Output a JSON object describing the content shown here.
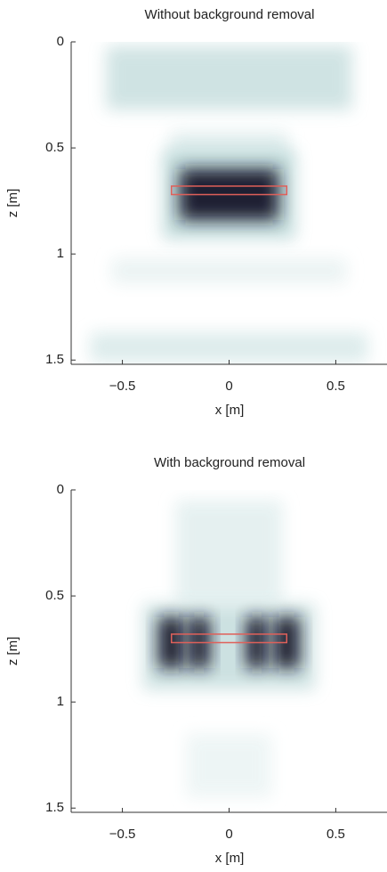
{
  "chart_data": [
    {
      "type": "image",
      "title": "Without background removal",
      "xlabel": "x [m]",
      "ylabel": "z [m]",
      "xlim": [
        -0.74,
        0.74
      ],
      "ylim": [
        0,
        1.52
      ],
      "xticks": [
        {
          "value": -0.5,
          "label": "−0.5"
        },
        0,
        0.5
      ],
      "yticks": [
        0,
        0.5,
        1,
        1.5
      ],
      "colormap": [
        "#ffffff",
        "#a6cccc",
        "#14142c"
      ],
      "blobs": [
        {
          "x": 0,
          "z": 0.17,
          "width": 1.15,
          "height": 0.3,
          "intensity": 0.28
        },
        {
          "x": 0,
          "z": 0.5,
          "width": 0.55,
          "height": 0.15,
          "intensity": 0.18
        },
        {
          "x": 0,
          "z": 0.72,
          "width": 0.62,
          "height": 0.42,
          "intensity": 0.35
        },
        {
          "x": 0,
          "z": 0.72,
          "width": 0.46,
          "height": 0.24,
          "intensity": 1
        },
        {
          "x": 0,
          "z": 1.08,
          "width": 1.1,
          "height": 0.12,
          "intensity": 0.12
        },
        {
          "x": 0,
          "z": 1.44,
          "width": 1.3,
          "height": 0.14,
          "intensity": 0.2
        }
      ],
      "target": {
        "x": [
          -0.27,
          0.27
        ],
        "z": [
          0.68,
          0.72
        ],
        "color": "#e0605a"
      }
    },
    {
      "type": "image",
      "title": "With background removal",
      "xlabel": "x [m]",
      "ylabel": "z [m]",
      "xlim": [
        -0.74,
        0.74
      ],
      "ylim": [
        0,
        1.52
      ],
      "xticks": [
        {
          "value": -0.5,
          "label": "−0.5"
        },
        0,
        0.5
      ],
      "yticks": [
        0,
        0.5,
        1,
        1.5
      ],
      "colormap": [
        "#ffffff",
        "#a6cccc",
        "#14142c"
      ],
      "blobs": [
        {
          "x": 0,
          "z": 0.3,
          "width": 0.5,
          "height": 0.5,
          "intensity": 0.15
        },
        {
          "x": 0,
          "z": 0.74,
          "width": 0.8,
          "height": 0.4,
          "intensity": 0.3
        },
        {
          "x": -0.27,
          "z": 0.72,
          "width": 0.12,
          "height": 0.24,
          "intensity": 1
        },
        {
          "x": -0.14,
          "z": 0.72,
          "width": 0.1,
          "height": 0.24,
          "intensity": 1
        },
        {
          "x": 0.13,
          "z": 0.72,
          "width": 0.1,
          "height": 0.24,
          "intensity": 1
        },
        {
          "x": 0.27,
          "z": 0.72,
          "width": 0.12,
          "height": 0.24,
          "intensity": 1
        },
        {
          "x": 0,
          "z": 1.3,
          "width": 0.4,
          "height": 0.3,
          "intensity": 0.1
        }
      ],
      "target": {
        "x": [
          -0.27,
          0.27
        ],
        "z": [
          0.68,
          0.72
        ],
        "color": "#e0605a"
      }
    }
  ]
}
